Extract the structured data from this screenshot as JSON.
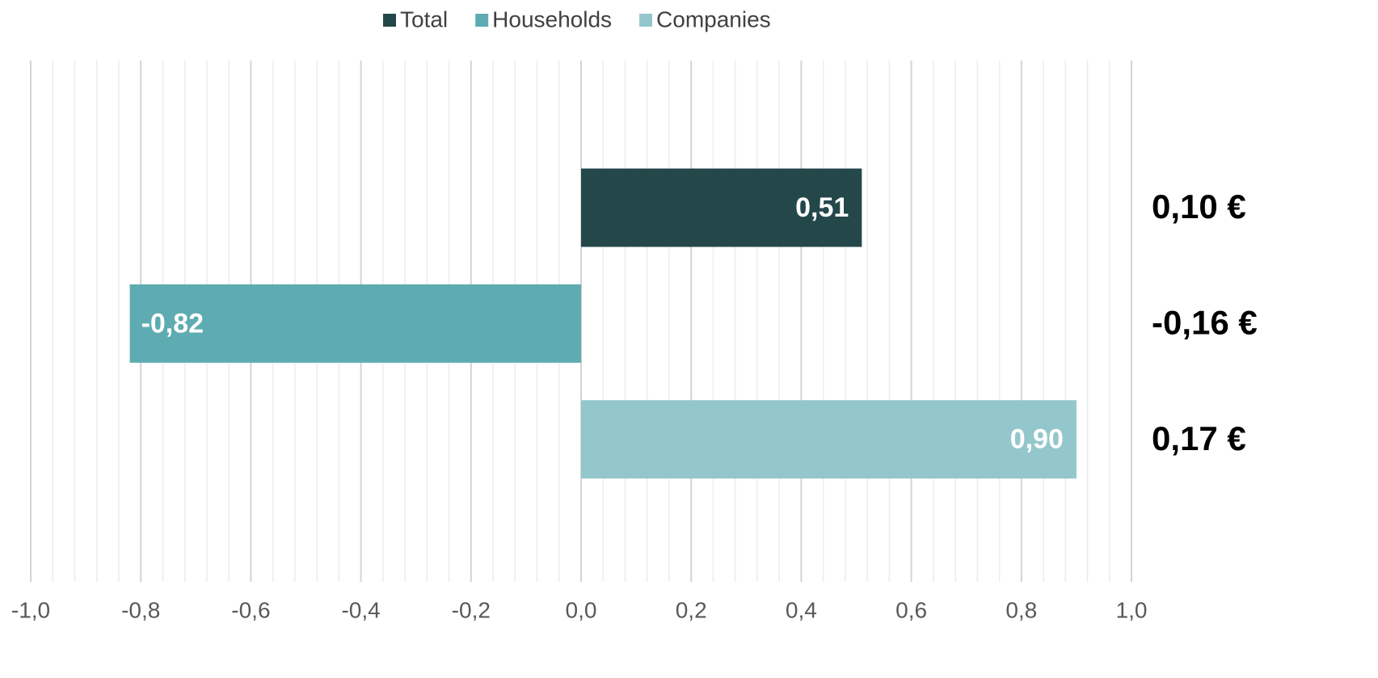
{
  "chart_data": {
    "type": "bar",
    "orientation": "horizontal",
    "series": [
      {
        "name": "Total",
        "color": "#24474a",
        "values": [
          0.51
        ],
        "value_labels": [
          "0,51"
        ]
      },
      {
        "name": "Households",
        "color": "#5eacb1",
        "values": [
          -0.82
        ],
        "value_labels": [
          "-0,82"
        ]
      },
      {
        "name": "Companies",
        "color": "#94c7cb",
        "values": [
          0.9
        ],
        "value_labels": [
          "0,90"
        ]
      }
    ],
    "annotations": [
      "0,10 €",
      "-0,16 €",
      "0,17 €"
    ],
    "xlim": [
      -1.0,
      1.0
    ],
    "xticks": [
      {
        "value": -1.0,
        "label": "-1,0"
      },
      {
        "value": -0.8,
        "label": "-0,8"
      },
      {
        "value": -0.6,
        "label": "-0,6"
      },
      {
        "value": -0.4,
        "label": "-0,4"
      },
      {
        "value": -0.2,
        "label": "-0,2"
      },
      {
        "value": 0,
        "label": "0,0"
      },
      {
        "value": 0.2,
        "label": "0,2"
      },
      {
        "value": 0.4,
        "label": "0,4"
      },
      {
        "value": 0.6,
        "label": "0,6"
      },
      {
        "value": 0.8,
        "label": "0,8"
      },
      {
        "value": 1.0,
        "label": "1,0"
      }
    ],
    "grid": true,
    "minor_grid": true,
    "legend": "top"
  }
}
